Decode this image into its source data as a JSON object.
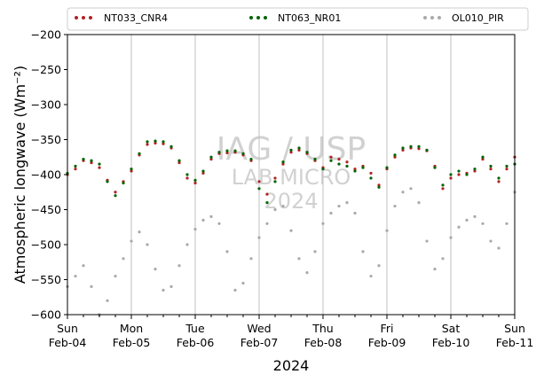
{
  "chart_data": {
    "type": "scatter",
    "title": "",
    "xlabel": "2024",
    "ylabel": "Atmospheric longwave (Wm⁻²)",
    "xlim": [
      "2024-02-04",
      "2024-02-11"
    ],
    "ylim": [
      -600,
      -200
    ],
    "yticks": [
      -200,
      -250,
      -300,
      -350,
      -400,
      -450,
      -500,
      -550,
      -600
    ],
    "xticks": [
      {
        "day": "Sun",
        "date": "Feb-04"
      },
      {
        "day": "Mon",
        "date": "Feb-05"
      },
      {
        "day": "Tue",
        "date": "Feb-06"
      },
      {
        "day": "Wed",
        "date": "Feb-07"
      },
      {
        "day": "Thu",
        "date": "Feb-08"
      },
      {
        "day": "Fri",
        "date": "Feb-09"
      },
      {
        "day": "Sat",
        "date": "Feb-10"
      },
      {
        "day": "Sun",
        "date": "Feb-11"
      }
    ],
    "grid": "vertical-major",
    "legend_position": "top",
    "watermark": [
      "IAG / USP",
      "LAB MICRO",
      "2024"
    ],
    "series": [
      {
        "name": "NT033_CNR4",
        "color": "#b22222",
        "x": [
          "2024-02-04 00:00",
          "2024-02-04 03:00",
          "2024-02-04 06:00",
          "2024-02-04 09:00",
          "2024-02-04 12:00",
          "2024-02-04 15:00",
          "2024-02-04 18:00",
          "2024-02-04 21:00",
          "2024-02-05 00:00",
          "2024-02-05 03:00",
          "2024-02-05 06:00",
          "2024-02-05 09:00",
          "2024-02-05 12:00",
          "2024-02-05 15:00",
          "2024-02-05 18:00",
          "2024-02-05 21:00",
          "2024-02-06 00:00",
          "2024-02-06 03:00",
          "2024-02-06 06:00",
          "2024-02-06 09:00",
          "2024-02-06 12:00",
          "2024-02-06 15:00",
          "2024-02-06 18:00",
          "2024-02-06 21:00",
          "2024-02-07 00:00",
          "2024-02-07 03:00",
          "2024-02-07 06:00",
          "2024-02-07 09:00",
          "2024-02-07 12:00",
          "2024-02-07 15:00",
          "2024-02-07 18:00",
          "2024-02-07 21:00",
          "2024-02-08 00:00",
          "2024-02-08 03:00",
          "2024-02-08 06:00",
          "2024-02-08 09:00",
          "2024-02-08 12:00",
          "2024-02-08 15:00",
          "2024-02-08 18:00",
          "2024-02-08 21:00",
          "2024-02-09 00:00",
          "2024-02-09 03:00",
          "2024-02-09 06:00",
          "2024-02-09 09:00",
          "2024-02-09 12:00",
          "2024-02-09 15:00",
          "2024-02-09 18:00",
          "2024-02-09 21:00",
          "2024-02-10 00:00",
          "2024-02-10 03:00",
          "2024-02-10 06:00",
          "2024-02-10 09:00",
          "2024-02-10 12:00",
          "2024-02-10 15:00",
          "2024-02-10 18:00",
          "2024-02-10 21:00",
          "2024-02-11 00:00"
        ],
        "y": [
          -400,
          -392,
          -380,
          -383,
          -390,
          -408,
          -425,
          -410,
          -395,
          -372,
          -357,
          -355,
          -356,
          -362,
          -383,
          -405,
          -412,
          -398,
          -378,
          -370,
          -369,
          -368,
          -372,
          -380,
          -410,
          -428,
          -405,
          -385,
          -368,
          -365,
          -370,
          -380,
          -390,
          -375,
          -378,
          -382,
          -392,
          -388,
          -398,
          -415,
          -392,
          -375,
          -365,
          -362,
          -363,
          -366,
          -388,
          -420,
          -405,
          -400,
          -398,
          -395,
          -378,
          -392,
          -410,
          -392,
          -375
        ]
      },
      {
        "name": "NT063_NR01",
        "color": "#006400",
        "x": [
          "2024-02-04 00:00",
          "2024-02-04 03:00",
          "2024-02-04 06:00",
          "2024-02-04 09:00",
          "2024-02-04 12:00",
          "2024-02-04 15:00",
          "2024-02-04 18:00",
          "2024-02-04 21:00",
          "2024-02-05 00:00",
          "2024-02-05 03:00",
          "2024-02-05 06:00",
          "2024-02-05 09:00",
          "2024-02-05 12:00",
          "2024-02-05 15:00",
          "2024-02-05 18:00",
          "2024-02-05 21:00",
          "2024-02-06 00:00",
          "2024-02-06 03:00",
          "2024-02-06 06:00",
          "2024-02-06 09:00",
          "2024-02-06 12:00",
          "2024-02-06 15:00",
          "2024-02-06 18:00",
          "2024-02-06 21:00",
          "2024-02-07 00:00",
          "2024-02-07 03:00",
          "2024-02-07 06:00",
          "2024-02-07 09:00",
          "2024-02-07 12:00",
          "2024-02-07 15:00",
          "2024-02-07 18:00",
          "2024-02-07 21:00",
          "2024-02-08 00:00",
          "2024-02-08 03:00",
          "2024-02-08 06:00",
          "2024-02-08 09:00",
          "2024-02-08 12:00",
          "2024-02-08 15:00",
          "2024-02-08 18:00",
          "2024-02-08 21:00",
          "2024-02-09 00:00",
          "2024-02-09 03:00",
          "2024-02-09 06:00",
          "2024-02-09 09:00",
          "2024-02-09 12:00",
          "2024-02-09 15:00",
          "2024-02-09 18:00",
          "2024-02-09 21:00",
          "2024-02-10 00:00",
          "2024-02-10 03:00",
          "2024-02-10 06:00",
          "2024-02-10 09:00",
          "2024-02-10 12:00",
          "2024-02-10 15:00",
          "2024-02-10 18:00",
          "2024-02-10 21:00",
          "2024-02-11 00:00"
        ],
        "y": [
          -398,
          -388,
          -378,
          -380,
          -385,
          -410,
          -430,
          -412,
          -392,
          -370,
          -353,
          -352,
          -353,
          -360,
          -380,
          -400,
          -408,
          -395,
          -375,
          -368,
          -366,
          -366,
          -370,
          -378,
          -420,
          -440,
          -410,
          -382,
          -365,
          -362,
          -368,
          -378,
          -392,
          -380,
          -385,
          -388,
          -395,
          -390,
          -405,
          -418,
          -390,
          -372,
          -362,
          -360,
          -360,
          -365,
          -390,
          -415,
          -400,
          -395,
          -400,
          -392,
          -375,
          -388,
          -405,
          -388,
          -385
        ]
      },
      {
        "name": "OL010_PIR",
        "color": "#a9a9a9",
        "x": [
          "2024-02-04 00:00",
          "2024-02-04 03:00",
          "2024-02-04 06:00",
          "2024-02-04 09:00",
          "2024-02-04 12:00",
          "2024-02-04 15:00",
          "2024-02-04 18:00",
          "2024-02-04 21:00",
          "2024-02-05 00:00",
          "2024-02-05 03:00",
          "2024-02-05 06:00",
          "2024-02-05 09:00",
          "2024-02-05 12:00",
          "2024-02-05 15:00",
          "2024-02-05 18:00",
          "2024-02-05 21:00",
          "2024-02-06 00:00",
          "2024-02-06 03:00",
          "2024-02-06 06:00",
          "2024-02-06 09:00",
          "2024-02-06 12:00",
          "2024-02-06 15:00",
          "2024-02-06 18:00",
          "2024-02-06 21:00",
          "2024-02-07 00:00",
          "2024-02-07 03:00",
          "2024-02-07 06:00",
          "2024-02-07 09:00",
          "2024-02-07 12:00",
          "2024-02-07 15:00",
          "2024-02-07 18:00",
          "2024-02-07 21:00",
          "2024-02-08 00:00",
          "2024-02-08 03:00",
          "2024-02-08 06:00",
          "2024-02-08 09:00",
          "2024-02-08 12:00",
          "2024-02-08 15:00",
          "2024-02-08 18:00",
          "2024-02-08 21:00",
          "2024-02-09 00:00",
          "2024-02-09 03:00",
          "2024-02-09 06:00",
          "2024-02-09 09:00",
          "2024-02-09 12:00",
          "2024-02-09 15:00",
          "2024-02-09 18:00",
          "2024-02-09 21:00",
          "2024-02-10 00:00",
          "2024-02-10 03:00",
          "2024-02-10 06:00",
          "2024-02-10 09:00",
          "2024-02-10 12:00",
          "2024-02-10 15:00",
          "2024-02-10 18:00",
          "2024-02-10 21:00",
          "2024-02-11 00:00"
        ],
        "y": [
          -560,
          -545,
          -530,
          -560,
          -600,
          -580,
          -545,
          -520,
          -495,
          -482,
          -500,
          -535,
          -565,
          -560,
          -530,
          -500,
          -478,
          -465,
          -460,
          -470,
          -510,
          -565,
          -555,
          -520,
          -490,
          -470,
          -450,
          -445,
          -480,
          -520,
          -540,
          -510,
          -470,
          -455,
          -445,
          -440,
          -455,
          -510,
          -545,
          -530,
          -480,
          -445,
          -425,
          -420,
          -440,
          -495,
          -535,
          -520,
          -490,
          -475,
          -465,
          -460,
          -470,
          -495,
          -505,
          -470,
          -425
        ]
      }
    ]
  }
}
